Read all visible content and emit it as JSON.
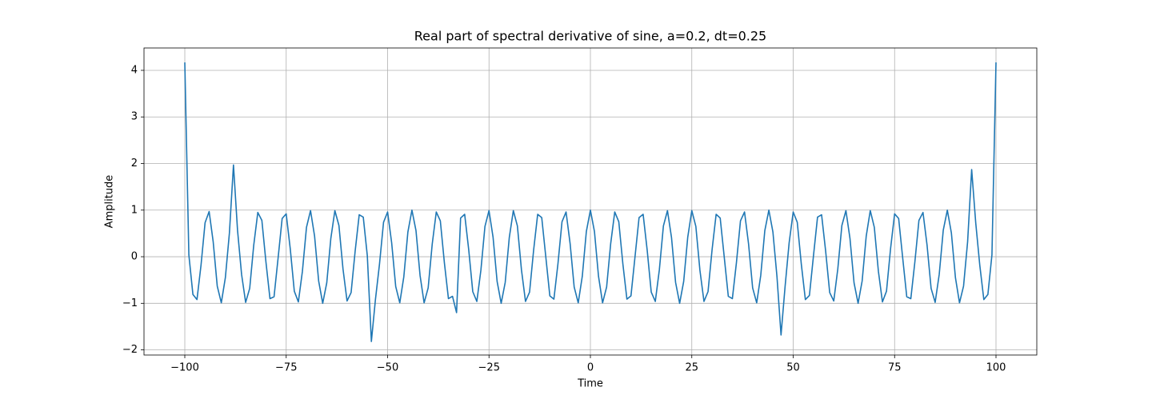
{
  "chart_data": {
    "type": "line",
    "title": "Real part of spectral derivative of sine, a=0.2, dt=0.25",
    "x_label": "Time",
    "y_label": "Amplitude",
    "x": [
      -100,
      -99,
      -98,
      -97,
      -96,
      -95,
      -94,
      -93,
      -92,
      -91,
      -90,
      -89,
      -88,
      -87,
      -86,
      -85,
      -84,
      -83,
      -82,
      -81,
      -80,
      -79,
      -78,
      -77,
      -76,
      -75,
      -74,
      -73,
      -72,
      -71,
      -70,
      -69,
      -68,
      -67,
      -66,
      -65,
      -64,
      -63,
      -62,
      -61,
      -60,
      -59,
      -58,
      -57,
      -56,
      -55,
      -54,
      -53,
      -52,
      -51,
      -50,
      -49,
      -48,
      -47,
      -46,
      -45,
      -44,
      -43,
      -42,
      -41,
      -40,
      -39,
      -38,
      -37,
      -36,
      -35,
      -34,
      -33,
      -32,
      -31,
      -30,
      -29,
      -28,
      -27,
      -26,
      -25,
      -24,
      -23,
      -22,
      -21,
      -20,
      -19,
      -18,
      -17,
      -16,
      -15,
      -14,
      -13,
      -12,
      -11,
      -10,
      -9,
      -8,
      -7,
      -6,
      -5,
      -4,
      -3,
      -2,
      -1,
      0,
      1,
      2,
      3,
      4,
      5,
      6,
      7,
      8,
      9,
      10,
      11,
      12,
      13,
      14,
      15,
      16,
      17,
      18,
      19,
      20,
      21,
      22,
      23,
      24,
      25,
      26,
      27,
      28,
      29,
      30,
      31,
      32,
      33,
      34,
      35,
      36,
      37,
      38,
      39,
      40,
      41,
      42,
      43,
      44,
      45,
      46,
      47,
      48,
      49,
      50,
      51,
      52,
      53,
      54,
      55,
      56,
      57,
      58,
      59,
      60,
      61,
      62,
      63,
      64,
      65,
      66,
      67,
      68,
      69,
      70,
      71,
      72,
      73,
      74,
      75,
      76,
      77,
      78,
      79,
      80,
      81,
      82,
      83,
      84,
      85,
      86,
      87,
      88,
      89,
      90,
      91,
      92,
      93,
      94,
      95,
      96,
      97,
      98,
      99,
      100
    ],
    "series": [
      {
        "name": "Amplitude",
        "color": "#1f77b4",
        "values": [
          4.17,
          0.04,
          -0.81,
          -0.92,
          -0.18,
          0.73,
          0.97,
          0.32,
          -0.63,
          -0.99,
          -0.45,
          0.51,
          1.97,
          0.57,
          -0.38,
          -0.98,
          -0.68,
          0.25,
          0.95,
          0.78,
          -0.11,
          -0.9,
          -0.86,
          -0.03,
          0.82,
          0.92,
          0.17,
          -0.74,
          -0.97,
          -0.31,
          0.63,
          0.99,
          0.44,
          -0.52,
          -1.0,
          -0.56,
          0.39,
          0.99,
          0.67,
          -0.26,
          -0.95,
          -0.77,
          0.12,
          0.9,
          0.85,
          0.02,
          -1.82,
          -0.92,
          -0.16,
          0.74,
          0.96,
          0.3,
          -0.64,
          -0.99,
          -0.43,
          0.53,
          1.0,
          0.56,
          -0.4,
          -0.99,
          -0.67,
          0.27,
          0.96,
          0.77,
          -0.13,
          -0.9,
          -0.85,
          -1.2,
          0.83,
          0.91,
          0.15,
          -0.75,
          -0.96,
          -0.29,
          0.65,
          0.99,
          0.42,
          -0.53,
          -1.0,
          -0.55,
          0.41,
          0.99,
          0.66,
          -0.28,
          -0.96,
          -0.76,
          0.14,
          0.91,
          0.84,
          0.0,
          -0.84,
          -0.91,
          -0.15,
          0.75,
          0.96,
          0.28,
          -0.65,
          -0.99,
          -0.42,
          0.54,
          1.0,
          0.54,
          -0.42,
          -0.99,
          -0.65,
          0.28,
          0.96,
          0.75,
          -0.15,
          -0.91,
          -0.84,
          0.0,
          0.84,
          0.91,
          0.14,
          -0.76,
          -0.96,
          -0.28,
          0.66,
          0.99,
          0.41,
          -0.55,
          -1.0,
          -0.53,
          0.42,
          0.99,
          0.65,
          -0.29,
          -0.96,
          -0.75,
          0.15,
          0.91,
          0.83,
          -0.01,
          -0.85,
          -0.9,
          -0.13,
          0.77,
          0.96,
          0.27,
          -0.67,
          -0.99,
          -0.4,
          0.56,
          1.0,
          0.53,
          -0.43,
          -1.68,
          -0.64,
          0.3,
          0.96,
          0.74,
          -0.16,
          -0.92,
          -0.83,
          0.02,
          0.85,
          0.9,
          0.12,
          -0.77,
          -0.95,
          -0.26,
          0.67,
          0.99,
          0.39,
          -0.56,
          -1.0,
          -0.52,
          0.44,
          0.99,
          0.63,
          -0.31,
          -0.97,
          -0.74,
          0.17,
          0.92,
          0.82,
          -0.03,
          -0.86,
          -0.9,
          -0.11,
          0.78,
          0.95,
          0.25,
          -0.68,
          -0.98,
          -0.38,
          0.57,
          1.0,
          0.51,
          -0.45,
          -0.99,
          -0.63,
          0.32,
          1.87,
          0.73,
          -0.18,
          -0.92,
          -0.81,
          0.04,
          4.17
        ]
      }
    ],
    "xlim": [
      -110.06,
      110.06
    ],
    "ylim": [
      -2.11,
      4.48
    ],
    "xticks": [
      {
        "value": -100,
        "label": "−100"
      },
      {
        "value": -75,
        "label": "−75"
      },
      {
        "value": -50,
        "label": "−50"
      },
      {
        "value": -25,
        "label": "−25"
      },
      0,
      25,
      50,
      75,
      100
    ],
    "yticks": [
      {
        "value": -2,
        "label": "−2"
      },
      {
        "value": -1,
        "label": "−1"
      },
      0,
      1,
      2,
      3,
      4
    ],
    "grid": true
  }
}
